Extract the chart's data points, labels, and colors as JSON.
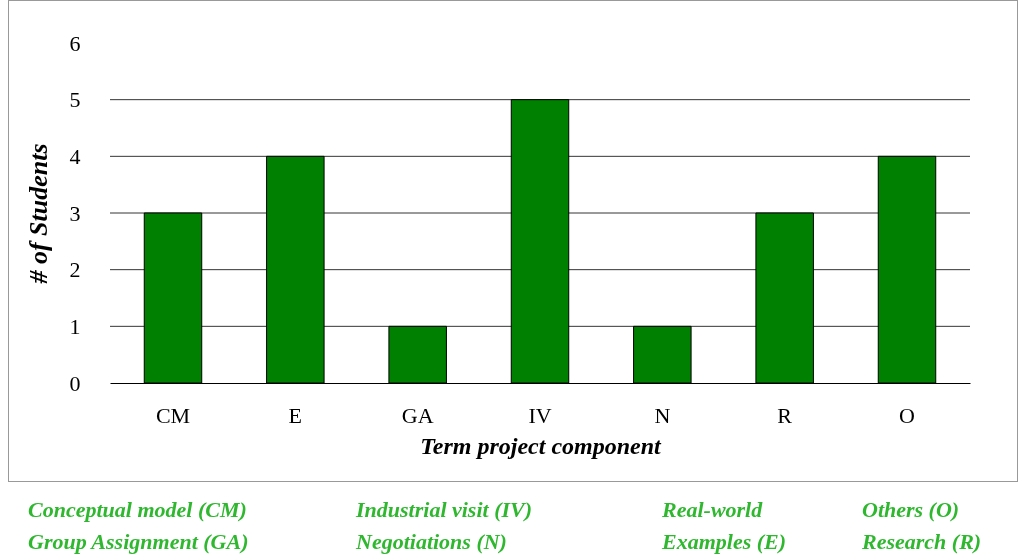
{
  "chart_data": {
    "type": "bar",
    "xlabel": "Term project component",
    "ylabel": "# of Students",
    "categories": [
      "CM",
      "E",
      "GA",
      "IV",
      "N",
      "R",
      "O"
    ],
    "values": [
      3,
      4,
      1,
      5,
      1,
      3,
      4
    ],
    "color": "#008000",
    "ylim": [
      0,
      6
    ],
    "yticks": [
      0,
      1,
      2,
      3,
      4,
      5,
      6
    ],
    "grid": "y",
    "annotations": [
      "Conceptual model (CM)",
      "Group Assignment (GA)",
      "Industrial visit (IV)",
      "Negotiations (N)",
      "Real-world Examples (E)",
      "Others (O)",
      "Research (R)"
    ]
  }
}
